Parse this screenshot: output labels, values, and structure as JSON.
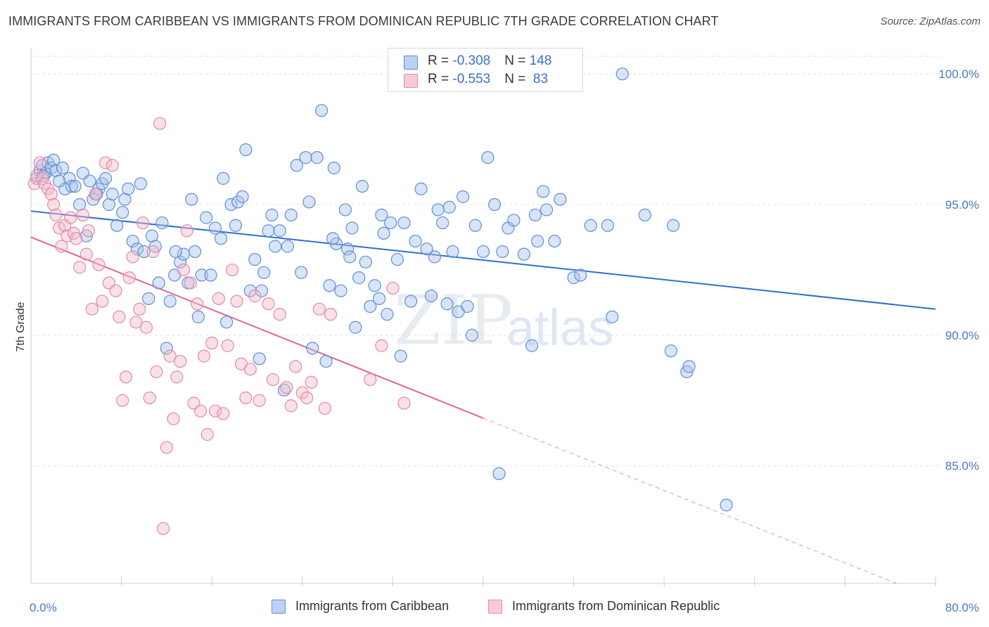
{
  "title": "IMMIGRANTS FROM CARIBBEAN VS IMMIGRANTS FROM DOMINICAN REPUBLIC 7TH GRADE CORRELATION CHART",
  "source": "Source: ZipAtlas.com",
  "watermark": {
    "zip": "ZIP",
    "atlas": "atlas"
  },
  "legend": {
    "rows": [
      {
        "r_label": "R = ",
        "r_value": "-0.308",
        "n_label": "N = ",
        "n_value": "148"
      },
      {
        "r_label": "R = ",
        "r_value": "-0.553",
        "n_label": "N = ",
        "n_value": " 83"
      }
    ]
  },
  "bottom_legend": {
    "series1": "Immigrants from Caribbean",
    "series2": "Immigrants from Dominican Republic"
  },
  "colors": {
    "series1_fill": "#a9c4ee",
    "series1_stroke": "#5f8fd6",
    "series1_line": "#2f6fd0",
    "series2_fill": "#f5bccb",
    "series2_stroke": "#e38aa6",
    "series2_line": "#e0668f",
    "tick_text": "#4a78c2",
    "grid": "#e3e3e3"
  },
  "chart_data": {
    "type": "scatter",
    "xlabel": "",
    "ylabel": "7th Grade",
    "xlim": [
      0,
      80
    ],
    "ylim": [
      80.5,
      101
    ],
    "x_tick_labels": [
      {
        "value": 0,
        "label": "0.0%"
      },
      {
        "value": 80,
        "label": "80.0%"
      }
    ],
    "y_tick_labels": [
      {
        "value": 100,
        "label": "100.0%"
      },
      {
        "value": 95,
        "label": "95.0%"
      },
      {
        "value": 90,
        "label": "90.0%"
      },
      {
        "value": 85,
        "label": "85.0%"
      }
    ],
    "x_minor_ticks": [
      8,
      16,
      24,
      32,
      40,
      48,
      56,
      64,
      72
    ],
    "series": [
      {
        "name": "Immigrants from Caribbean",
        "trend": {
          "x": [
            0,
            80
          ],
          "y": [
            94.75,
            91.0
          ],
          "dashed_from": null
        },
        "points": [
          [
            0.5,
            96.0
          ],
          [
            0.8,
            96.3
          ],
          [
            1.0,
            96.5
          ],
          [
            1.3,
            96.2
          ],
          [
            1.5,
            96.6
          ],
          [
            1.8,
            96.4
          ],
          [
            2.0,
            96.7
          ],
          [
            2.2,
            96.3
          ],
          [
            2.8,
            96.4
          ],
          [
            3.0,
            95.6
          ],
          [
            3.4,
            96.0
          ],
          [
            3.6,
            95.7
          ],
          [
            3.9,
            95.7
          ],
          [
            4.3,
            95.0
          ],
          [
            4.6,
            96.2
          ],
          [
            4.9,
            93.8
          ],
          [
            5.2,
            95.9
          ],
          [
            5.5,
            95.2
          ],
          [
            6.0,
            95.6
          ],
          [
            6.3,
            95.8
          ],
          [
            6.6,
            96.0
          ],
          [
            6.9,
            95.0
          ],
          [
            7.2,
            95.4
          ],
          [
            7.6,
            94.2
          ],
          [
            8.1,
            94.7
          ],
          [
            8.3,
            95.2
          ],
          [
            8.6,
            95.6
          ],
          [
            9.0,
            93.6
          ],
          [
            9.4,
            93.3
          ],
          [
            9.7,
            95.8
          ],
          [
            10.0,
            93.2
          ],
          [
            10.4,
            91.4
          ],
          [
            10.7,
            93.8
          ],
          [
            11.0,
            93.4
          ],
          [
            11.3,
            92.0
          ],
          [
            11.6,
            94.3
          ],
          [
            12.0,
            89.5
          ],
          [
            12.3,
            91.3
          ],
          [
            12.7,
            92.3
          ],
          [
            13.2,
            92.8
          ],
          [
            13.5,
            93.1
          ],
          [
            13.9,
            92.0
          ],
          [
            14.2,
            95.2
          ],
          [
            14.5,
            93.2
          ],
          [
            14.8,
            90.7
          ],
          [
            15.1,
            92.3
          ],
          [
            15.5,
            94.5
          ],
          [
            15.9,
            92.3
          ],
          [
            16.3,
            94.1
          ],
          [
            16.8,
            93.7
          ],
          [
            17.0,
            96.0
          ],
          [
            17.3,
            90.5
          ],
          [
            17.7,
            95.0
          ],
          [
            18.1,
            94.2
          ],
          [
            18.3,
            95.1
          ],
          [
            18.7,
            95.3
          ],
          [
            19.0,
            97.1
          ],
          [
            19.4,
            91.7
          ],
          [
            19.8,
            92.9
          ],
          [
            20.2,
            89.1
          ],
          [
            20.6,
            92.4
          ],
          [
            21.0,
            94.0
          ],
          [
            21.3,
            94.6
          ],
          [
            21.6,
            93.4
          ],
          [
            22.0,
            94.0
          ],
          [
            22.4,
            87.9
          ],
          [
            22.7,
            93.4
          ],
          [
            23.0,
            94.6
          ],
          [
            23.5,
            96.5
          ],
          [
            23.9,
            92.4
          ],
          [
            24.3,
            96.8
          ],
          [
            24.6,
            95.1
          ],
          [
            24.9,
            89.5
          ],
          [
            25.3,
            96.8
          ],
          [
            25.7,
            98.6
          ],
          [
            26.1,
            89.0
          ],
          [
            26.4,
            91.9
          ],
          [
            26.8,
            96.4
          ],
          [
            27.0,
            93.5
          ],
          [
            27.4,
            91.7
          ],
          [
            27.8,
            94.8
          ],
          [
            28.0,
            93.3
          ],
          [
            28.2,
            93.0
          ],
          [
            28.4,
            94.1
          ],
          [
            28.7,
            90.3
          ],
          [
            29.0,
            92.2
          ],
          [
            29.3,
            95.7
          ],
          [
            29.6,
            92.8
          ],
          [
            30.0,
            91.1
          ],
          [
            30.4,
            91.9
          ],
          [
            30.8,
            91.4
          ],
          [
            31.0,
            94.6
          ],
          [
            31.5,
            90.8
          ],
          [
            31.8,
            94.3
          ],
          [
            32.4,
            92.9
          ],
          [
            32.7,
            89.2
          ],
          [
            33.0,
            94.3
          ],
          [
            33.6,
            91.3
          ],
          [
            34.0,
            93.6
          ],
          [
            34.5,
            95.6
          ],
          [
            35.0,
            93.3
          ],
          [
            35.4,
            91.5
          ],
          [
            35.7,
            93.0
          ],
          [
            36.0,
            94.8
          ],
          [
            36.4,
            94.3
          ],
          [
            37.0,
            94.9
          ],
          [
            37.3,
            93.2
          ],
          [
            37.8,
            90.9
          ],
          [
            38.2,
            95.3
          ],
          [
            38.6,
            91.1
          ],
          [
            39.0,
            90.0
          ],
          [
            39.3,
            94.2
          ],
          [
            40.0,
            93.2
          ],
          [
            40.4,
            96.8
          ],
          [
            41.0,
            95.0
          ],
          [
            41.4,
            84.7
          ],
          [
            41.7,
            93.2
          ],
          [
            42.2,
            94.1
          ],
          [
            42.7,
            94.4
          ],
          [
            43.6,
            93.1
          ],
          [
            44.3,
            89.6
          ],
          [
            44.6,
            94.6
          ],
          [
            44.8,
            93.6
          ],
          [
            45.3,
            95.5
          ],
          [
            45.6,
            94.8
          ],
          [
            46.3,
            93.6
          ],
          [
            46.8,
            95.2
          ],
          [
            48.0,
            92.2
          ],
          [
            48.2,
            100.0
          ],
          [
            48.6,
            92.3
          ],
          [
            51.0,
            94.2
          ],
          [
            51.4,
            90.7
          ],
          [
            52.3,
            100.0
          ],
          [
            54.3,
            94.6
          ],
          [
            56.6,
            89.4
          ],
          [
            58.0,
            88.6
          ],
          [
            58.2,
            88.8
          ],
          [
            61.5,
            83.5
          ],
          [
            56.8,
            94.2
          ],
          [
            49.5,
            94.2
          ],
          [
            12.8,
            93.2
          ],
          [
            20.4,
            91.7
          ],
          [
            26.7,
            93.7
          ],
          [
            31.2,
            93.9
          ],
          [
            36.8,
            91.2
          ],
          [
            1.1,
            96.1
          ],
          [
            2.5,
            95.9
          ],
          [
            5.8,
            95.4
          ]
        ]
      },
      {
        "name": "Immigrants from Dominican Republic",
        "trend": {
          "x": [
            0,
            80
          ],
          "y": [
            93.75,
            79.9
          ],
          "dashed_from": 40
        },
        "points": [
          [
            0.3,
            95.8
          ],
          [
            0.5,
            96.1
          ],
          [
            0.8,
            96.6
          ],
          [
            1.0,
            96.0
          ],
          [
            1.2,
            95.8
          ],
          [
            1.5,
            95.6
          ],
          [
            1.8,
            95.4
          ],
          [
            2.0,
            95.0
          ],
          [
            2.2,
            94.6
          ],
          [
            2.5,
            94.1
          ],
          [
            2.7,
            93.4
          ],
          [
            3.0,
            94.2
          ],
          [
            3.2,
            93.8
          ],
          [
            3.5,
            94.5
          ],
          [
            3.8,
            93.9
          ],
          [
            4.0,
            93.7
          ],
          [
            4.3,
            92.6
          ],
          [
            4.6,
            94.6
          ],
          [
            4.9,
            93.1
          ],
          [
            5.1,
            94.0
          ],
          [
            5.4,
            91.0
          ],
          [
            5.7,
            95.4
          ],
          [
            6.0,
            92.7
          ],
          [
            6.3,
            91.3
          ],
          [
            6.6,
            96.6
          ],
          [
            6.9,
            92.0
          ],
          [
            7.2,
            96.5
          ],
          [
            7.5,
            91.7
          ],
          [
            7.8,
            90.7
          ],
          [
            8.1,
            87.5
          ],
          [
            8.4,
            88.4
          ],
          [
            8.7,
            92.2
          ],
          [
            9.0,
            93.0
          ],
          [
            9.3,
            90.5
          ],
          [
            9.6,
            91.0
          ],
          [
            9.9,
            94.3
          ],
          [
            10.2,
            90.3
          ],
          [
            10.5,
            87.6
          ],
          [
            10.8,
            93.2
          ],
          [
            11.1,
            88.6
          ],
          [
            11.4,
            98.1
          ],
          [
            11.7,
            82.6
          ],
          [
            12.0,
            85.7
          ],
          [
            12.3,
            89.2
          ],
          [
            12.6,
            86.8
          ],
          [
            12.9,
            88.4
          ],
          [
            13.2,
            89.0
          ],
          [
            13.5,
            92.5
          ],
          [
            13.8,
            94.0
          ],
          [
            14.1,
            92.0
          ],
          [
            14.4,
            87.4
          ],
          [
            14.7,
            91.2
          ],
          [
            15.0,
            87.1
          ],
          [
            15.3,
            89.2
          ],
          [
            15.6,
            86.2
          ],
          [
            16.0,
            89.7
          ],
          [
            16.3,
            87.1
          ],
          [
            16.6,
            91.4
          ],
          [
            17.0,
            87.0
          ],
          [
            17.4,
            89.6
          ],
          [
            17.8,
            92.5
          ],
          [
            18.2,
            91.3
          ],
          [
            18.6,
            88.9
          ],
          [
            19.0,
            87.6
          ],
          [
            19.4,
            88.7
          ],
          [
            19.8,
            91.5
          ],
          [
            20.2,
            87.5
          ],
          [
            21.0,
            91.2
          ],
          [
            21.4,
            88.3
          ],
          [
            22.0,
            90.8
          ],
          [
            22.6,
            88.0
          ],
          [
            23.0,
            87.3
          ],
          [
            23.4,
            88.8
          ],
          [
            24.0,
            87.8
          ],
          [
            24.4,
            87.6
          ],
          [
            24.8,
            88.2
          ],
          [
            25.5,
            91.0
          ],
          [
            26.0,
            87.2
          ],
          [
            26.5,
            90.8
          ],
          [
            30.0,
            88.3
          ],
          [
            31.0,
            89.6
          ],
          [
            32.0,
            91.8
          ],
          [
            33.0,
            87.4
          ]
        ]
      }
    ]
  }
}
